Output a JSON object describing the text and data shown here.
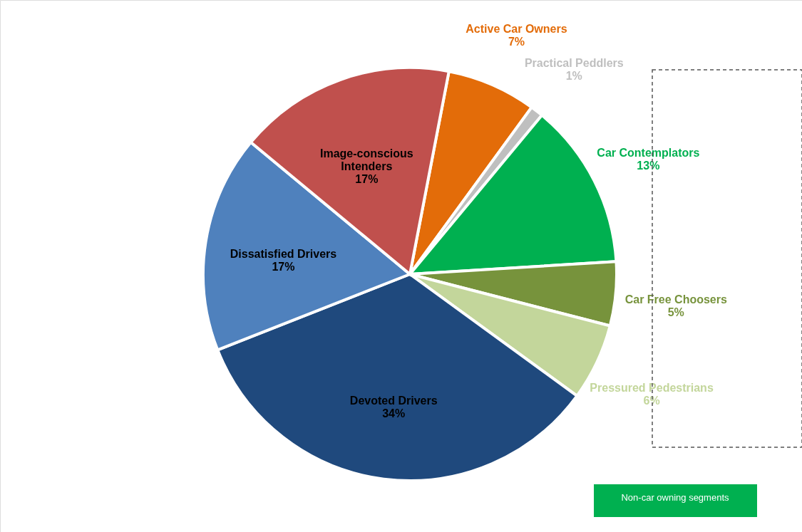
{
  "chart_data": {
    "type": "pie",
    "categories": [
      "Active Car Owners",
      "Practical Peddlers",
      "Car Contemplators",
      "Car Free Choosers",
      "Pressured Pedestrians",
      "Devoted Drivers",
      "Dissatisfied Drivers",
      "Image-conscious\nIntenders"
    ],
    "values": [
      7,
      1,
      13,
      5,
      6,
      34,
      17,
      17
    ],
    "colors": [
      "#e36c09",
      "#bfbfbf",
      "#00b050",
      "#77933c",
      "#c3d69b",
      "#1f497d",
      "#4f81bd",
      "#c0504d"
    ],
    "value_labels": [
      "7%",
      "1%",
      "13%",
      "5%",
      "6%",
      "34%",
      "17%",
      "17%"
    ],
    "annotations": [
      "Non-car owning segments"
    ]
  }
}
